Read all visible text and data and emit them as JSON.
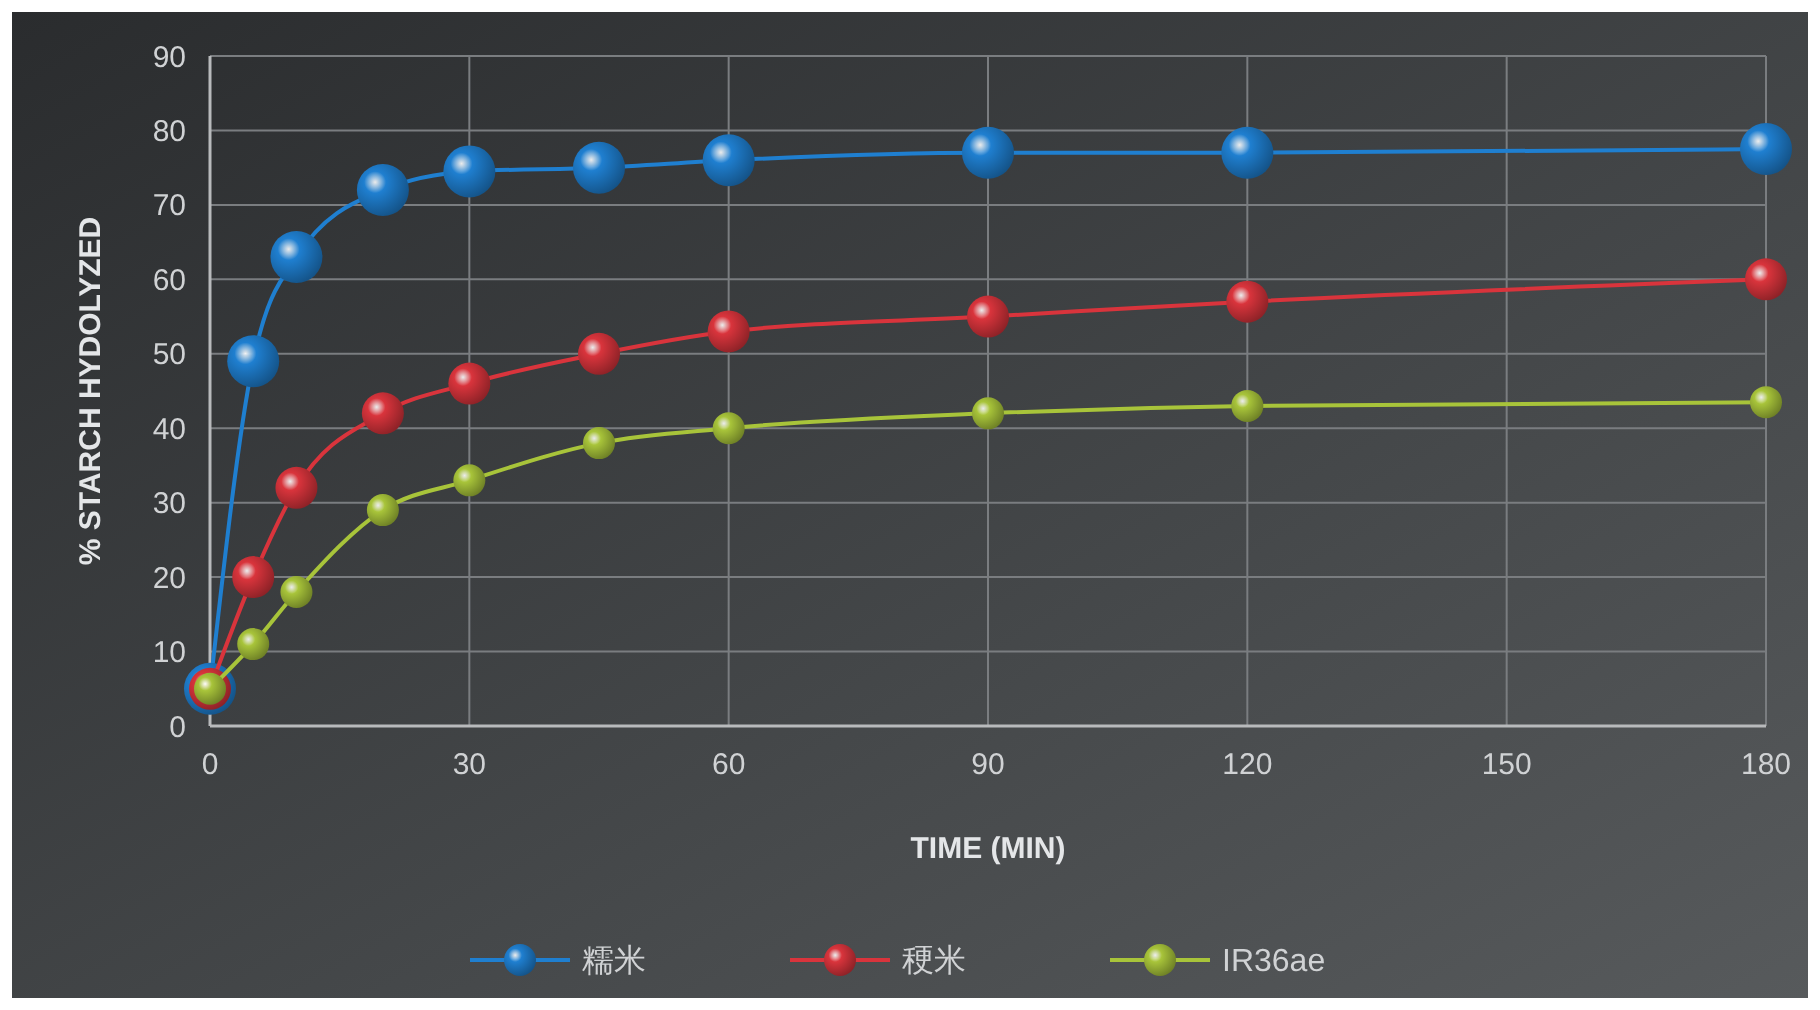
{
  "chart_data": {
    "type": "line",
    "xlabel": "TIME (MIN)",
    "ylabel": "% STARCH HYDOLYZED",
    "x": [
      0,
      5,
      10,
      20,
      30,
      45,
      60,
      90,
      120,
      180
    ],
    "xlim": [
      0,
      180
    ],
    "xticks": [
      0,
      30,
      60,
      90,
      120,
      150,
      180
    ],
    "ylim": [
      0,
      90
    ],
    "yticks": [
      0,
      10,
      20,
      30,
      40,
      50,
      60,
      70,
      80,
      90
    ],
    "grid": true,
    "legend": "bottom",
    "marker": "circle",
    "line_style": "solid",
    "series": [
      {
        "name": "糯米",
        "color": "#1f7fd0",
        "values": [
          5,
          49,
          63,
          72,
          74.5,
          75,
          76,
          77,
          77,
          77.5
        ]
      },
      {
        "name": "稉米",
        "color": "#d9343c",
        "values": [
          5,
          20,
          32,
          42,
          46,
          50,
          53,
          55,
          57,
          60
        ]
      },
      {
        "name": "IR36ae",
        "color": "#a8c43a",
        "values": [
          5,
          11,
          18,
          29,
          33,
          38,
          40,
          42,
          43,
          43.5
        ]
      }
    ]
  }
}
